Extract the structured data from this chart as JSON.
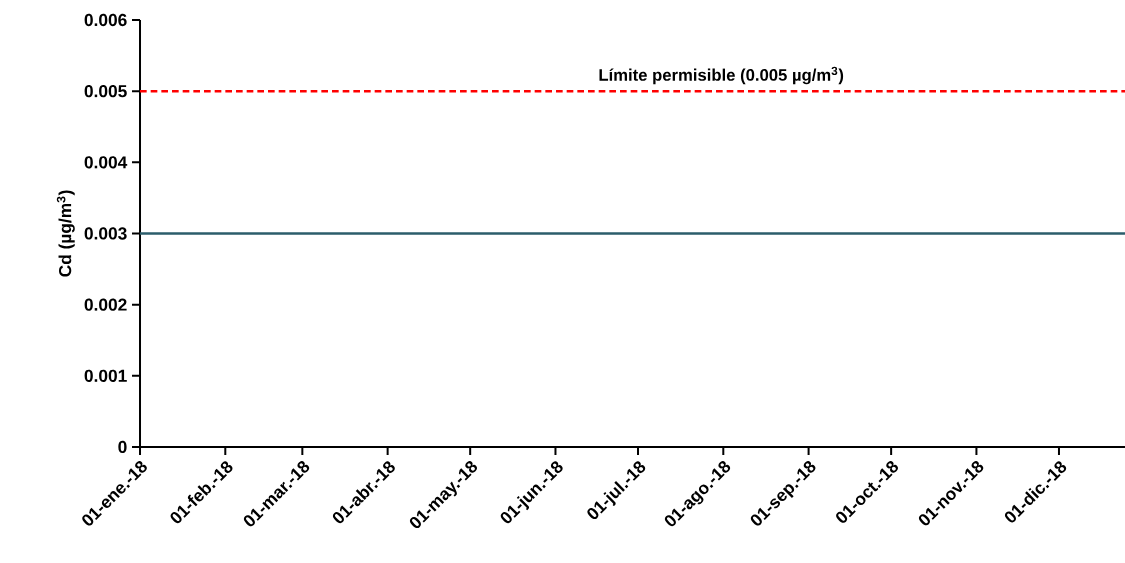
{
  "chart_data": {
    "type": "line",
    "ylabel": "Cd (µg/m$^{3}$)",
    "x": [
      "2018-01-01",
      "2018-12-25"
    ],
    "series": [
      {
        "color": "#2b5d6b",
        "values": [
          0.003,
          0.003
        ]
      }
    ],
    "xlim": [
      "2018-01-01",
      "2018-12-25"
    ],
    "xticks": [
      {
        "value": "2018-01-01",
        "label": "01-ene.-18"
      },
      {
        "value": "2018-02-01",
        "label": "01-feb.-18"
      },
      {
        "value": "2018-03-01",
        "label": "01-mar.-18"
      },
      {
        "value": "2018-04-01",
        "label": "01-abr.-18"
      },
      {
        "value": "2018-05-01",
        "label": "01-may.-18"
      },
      {
        "value": "2018-06-01",
        "label": "01-jun.-18"
      },
      {
        "value": "2018-07-01",
        "label": "01-jul.-18"
      },
      {
        "value": "2018-08-01",
        "label": "01-ago.-18"
      },
      {
        "value": "2018-09-01",
        "label": "01-sep.-18"
      },
      {
        "value": "2018-10-01",
        "label": "01-oct.-18"
      },
      {
        "value": "2018-11-01",
        "label": "01-nov.-18"
      },
      {
        "value": "2018-12-01",
        "label": "01-dic.-18"
      }
    ],
    "ylim": [
      0,
      0.006
    ],
    "yticks": [
      0,
      0.001,
      0.002,
      0.003,
      0.004,
      0.005,
      0.006
    ],
    "ref_lines": [
      {
        "axis": "y",
        "value": 0.005,
        "label": "Límite permisible (0.005 µg/m$^{3}$)",
        "color": "#ff0000",
        "line_style": "dashed"
      }
    ]
  }
}
